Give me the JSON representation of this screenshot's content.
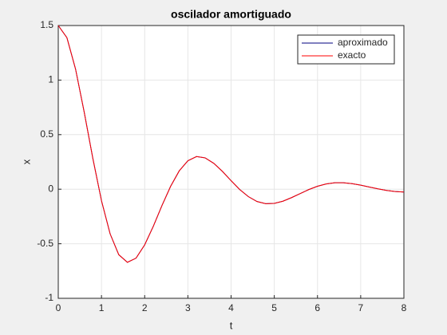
{
  "chart_data": {
    "type": "line",
    "title": "oscilador amortiguado",
    "x_label": "t",
    "y_label": "x",
    "x": [
      0,
      0.2,
      0.4,
      0.6,
      0.8,
      1,
      1.2,
      1.4,
      1.6,
      1.8,
      2,
      2.2,
      2.4,
      2.6,
      2.8,
      3,
      3.2,
      3.4,
      3.6,
      3.8,
      4,
      4.2,
      4.4,
      4.6,
      4.8,
      5,
      5.2,
      5.4,
      5.6,
      5.8,
      6,
      6.2,
      6.4,
      6.6,
      6.8,
      7,
      7.2,
      7.4,
      7.6,
      7.8,
      8
    ],
    "series": [
      {
        "name": "aproximado",
        "color": "#00007f",
        "values": [
          1.5,
          1.389,
          1.101,
          0.707,
          0.283,
          -0.105,
          -0.409,
          -0.6,
          -0.67,
          -0.632,
          -0.51,
          -0.34,
          -0.15,
          0.026,
          0.168,
          0.261,
          0.299,
          0.287,
          0.237,
          0.163,
          0.078,
          -0.003,
          -0.068,
          -0.113,
          -0.133,
          -0.13,
          -0.11,
          -0.077,
          -0.04,
          -0.003,
          0.027,
          0.048,
          0.059,
          0.059,
          0.051,
          0.037,
          0.02,
          0.003,
          -0.011,
          -0.021,
          -0.026
        ]
      },
      {
        "name": "exacto",
        "color": "#ff0000",
        "values": [
          1.5,
          1.389,
          1.101,
          0.707,
          0.283,
          -0.105,
          -0.409,
          -0.6,
          -0.67,
          -0.632,
          -0.51,
          -0.34,
          -0.15,
          0.026,
          0.168,
          0.261,
          0.299,
          0.287,
          0.237,
          0.163,
          0.078,
          -0.003,
          -0.068,
          -0.113,
          -0.133,
          -0.13,
          -0.11,
          -0.077,
          -0.04,
          -0.003,
          0.027,
          0.048,
          0.059,
          0.059,
          0.051,
          0.037,
          0.02,
          0.003,
          -0.011,
          -0.021,
          -0.026
        ]
      }
    ],
    "xlim": [
      0,
      8
    ],
    "xticks": [
      0,
      1,
      2,
      3,
      4,
      5,
      6,
      7,
      8
    ],
    "ylim": [
      -1,
      1.5
    ],
    "yticks": [
      -1,
      -0.5,
      0,
      0.5,
      1,
      1.5
    ],
    "grid": true,
    "legend": "upper right"
  }
}
